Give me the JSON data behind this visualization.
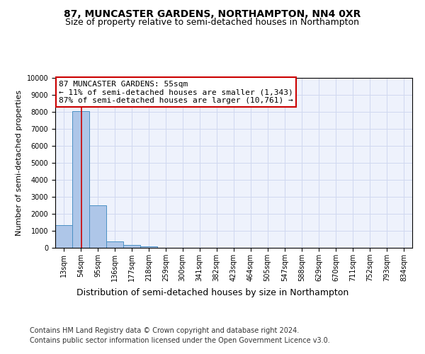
{
  "title": "87, MUNCASTER GARDENS, NORTHAMPTON, NN4 0XR",
  "subtitle": "Size of property relative to semi-detached houses in Northampton",
  "xlabel_bottom": "Distribution of semi-detached houses by size in Northampton",
  "ylabel": "Number of semi-detached properties",
  "footer_line1": "Contains HM Land Registry data © Crown copyright and database right 2024.",
  "footer_line2": "Contains public sector information licensed under the Open Government Licence v3.0.",
  "annotation_title": "87 MUNCASTER GARDENS: 55sqm",
  "annotation_line1": "← 11% of semi-detached houses are smaller (1,343)",
  "annotation_line2": "87% of semi-detached houses are larger (10,761) →",
  "property_size_sqm": 55,
  "bar_centers": [
    13,
    54,
    95,
    136,
    177,
    218,
    259,
    300,
    341,
    382,
    423,
    464,
    505,
    547,
    588,
    629,
    670,
    711,
    752,
    793,
    834
  ],
  "bar_values": [
    1343,
    8050,
    2520,
    390,
    150,
    80,
    0,
    0,
    0,
    0,
    0,
    0,
    0,
    0,
    0,
    0,
    0,
    0,
    0,
    0,
    0
  ],
  "bin_width": 41,
  "tick_labels": [
    "13sqm",
    "54sqm",
    "95sqm",
    "136sqm",
    "177sqm",
    "218sqm",
    "259sqm",
    "300sqm",
    "341sqm",
    "382sqm",
    "423sqm",
    "464sqm",
    "505sqm",
    "547sqm",
    "588sqm",
    "629sqm",
    "670sqm",
    "711sqm",
    "752sqm",
    "793sqm",
    "834sqm"
  ],
  "ylim": [
    0,
    10000
  ],
  "yticks": [
    0,
    1000,
    2000,
    3000,
    4000,
    5000,
    6000,
    7000,
    8000,
    9000,
    10000
  ],
  "bar_color": "#aec6e8",
  "bar_edge_color": "#4a90c4",
  "vline_color": "#cc0000",
  "vline_x": 55,
  "annotation_box_color": "#cc0000",
  "grid_color": "#d0d8f0",
  "background_color": "#eef2fc",
  "title_fontsize": 10,
  "subtitle_fontsize": 9,
  "ylabel_fontsize": 8,
  "tick_fontsize": 7,
  "annotation_fontsize": 8,
  "footer_fontsize": 7
}
